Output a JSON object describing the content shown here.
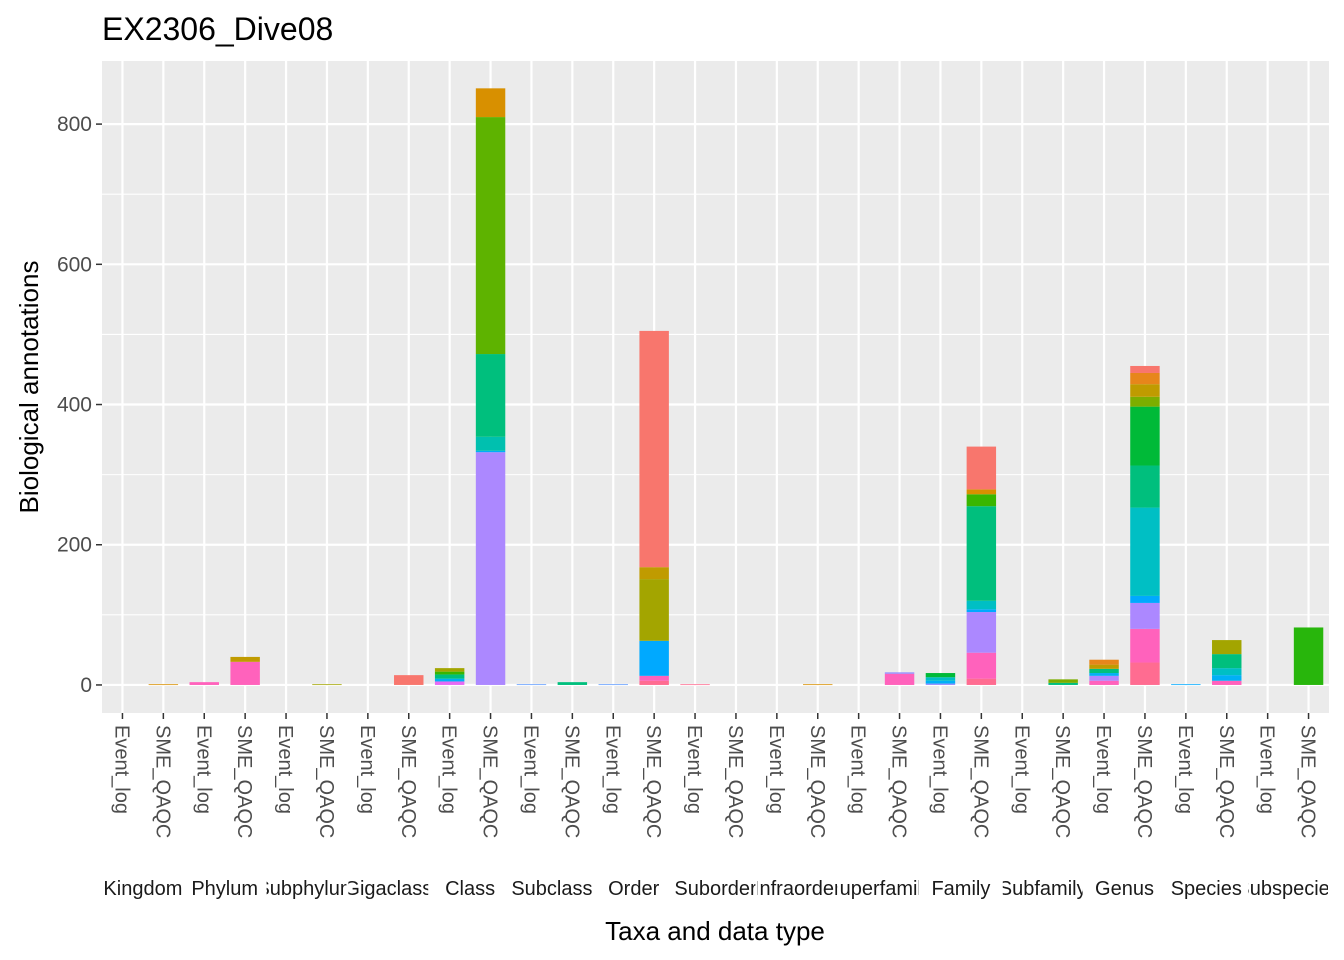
{
  "chart_data": {
    "type": "bar",
    "stacked": true,
    "title": "EX2306_Dive08",
    "xlabel": "Taxa and data type",
    "ylabel": "Biological annotations",
    "ylim": [
      -40,
      890
    ],
    "yticks": [
      0,
      200,
      400,
      600,
      800
    ],
    "grid": true,
    "legend": "none",
    "categories": [
      "Event_log",
      "SME_QAQC",
      "Event_log",
      "SME_QAQC",
      "Event_log",
      "SME_QAQC",
      "Event_log",
      "SME_QAQC",
      "Event_log",
      "SME_QAQC",
      "Event_log",
      "SME_QAQC",
      "Event_log",
      "SME_QAQC",
      "Event_log",
      "SME_QAQC",
      "Event_log",
      "SME_QAQC",
      "Event_log",
      "SME_QAQC",
      "Event_log",
      "SME_QAQC",
      "Event_log",
      "SME_QAQC",
      "Event_log",
      "SME_QAQC",
      "Event_log",
      "SME_QAQC",
      "Event_log",
      "SME_QAQC"
    ],
    "groups": [
      "Kingdom",
      "Phylum",
      "Subphylum",
      "Gigaclass",
      "Class",
      "Subclass",
      "Order",
      "Suborder",
      "Infraorder",
      "Superfamily",
      "Family",
      "Subfamily",
      "Genus",
      "Species",
      "Subspecies"
    ],
    "bars": [
      {
        "segments": []
      },
      {
        "segments": [
          {
            "value": 1,
            "color": "#D89000"
          }
        ]
      },
      {
        "segments": [
          {
            "value": 4,
            "color": "#FF62BC"
          }
        ]
      },
      {
        "segments": [
          {
            "value": 33,
            "color": "#FF62BC"
          },
          {
            "value": 7,
            "color": "#C09B00"
          }
        ]
      },
      {
        "segments": []
      },
      {
        "segments": [
          {
            "value": 1,
            "color": "#A3A500"
          }
        ]
      },
      {
        "segments": []
      },
      {
        "segments": [
          {
            "value": 14,
            "color": "#F8766D"
          }
        ]
      },
      {
        "segments": [
          {
            "value": 5,
            "color": "#E76BF3"
          },
          {
            "value": 4,
            "color": "#00B0F6"
          },
          {
            "value": 6,
            "color": "#00BF7D"
          },
          {
            "value": 4,
            "color": "#39B600"
          },
          {
            "value": 5,
            "color": "#A3A500"
          }
        ]
      },
      {
        "segments": [
          {
            "value": 332,
            "color": "#AC88FF"
          },
          {
            "value": 2,
            "color": "#00B0F6"
          },
          {
            "value": 20,
            "color": "#00C0AF"
          },
          {
            "value": 118,
            "color": "#00BF7D"
          },
          {
            "value": 338,
            "color": "#5EB300"
          },
          {
            "value": 41,
            "color": "#D89000"
          }
        ]
      },
      {
        "segments": [
          {
            "value": 1,
            "color": "#619CFF"
          }
        ]
      },
      {
        "segments": [
          {
            "value": 4,
            "color": "#00BF7D"
          }
        ]
      },
      {
        "segments": [
          {
            "value": 1,
            "color": "#619CFF"
          }
        ]
      },
      {
        "segments": [
          {
            "value": 6,
            "color": "#FF6C91"
          },
          {
            "value": 7,
            "color": "#FF62BC"
          },
          {
            "value": 50,
            "color": "#00A9FF"
          },
          {
            "value": 88,
            "color": "#A3A500"
          },
          {
            "value": 17,
            "color": "#C09B00"
          },
          {
            "value": 337,
            "color": "#F8766D"
          }
        ]
      },
      {
        "segments": [
          {
            "value": 1,
            "color": "#FF6C91"
          }
        ]
      },
      {
        "segments": []
      },
      {
        "segments": []
      },
      {
        "segments": [
          {
            "value": 1,
            "color": "#D89000"
          }
        ]
      },
      {
        "segments": []
      },
      {
        "segments": [
          {
            "value": 16,
            "color": "#FF62BC"
          },
          {
            "value": 2,
            "color": "#9590FF"
          }
        ]
      },
      {
        "segments": [
          {
            "value": 2,
            "color": "#9590FF"
          },
          {
            "value": 4,
            "color": "#00B0F6"
          },
          {
            "value": 5,
            "color": "#00BFC4"
          },
          {
            "value": 6,
            "color": "#00BA38"
          }
        ]
      },
      {
        "segments": [
          {
            "value": 9,
            "color": "#FF6C91"
          },
          {
            "value": 37,
            "color": "#FF62BC"
          },
          {
            "value": 58,
            "color": "#AC88FF"
          },
          {
            "value": 4,
            "color": "#00A9FF"
          },
          {
            "value": 12,
            "color": "#00BFC4"
          },
          {
            "value": 135,
            "color": "#00BF7D"
          },
          {
            "value": 17,
            "color": "#39B600"
          },
          {
            "value": 7,
            "color": "#D89000"
          },
          {
            "value": 61,
            "color": "#F8766D"
          }
        ]
      },
      {
        "segments": []
      },
      {
        "segments": [
          {
            "value": 3,
            "color": "#00BF7D"
          },
          {
            "value": 5,
            "color": "#7CAE00"
          }
        ]
      },
      {
        "segments": [
          {
            "value": 6,
            "color": "#FF62BC"
          },
          {
            "value": 7,
            "color": "#AC88FF"
          },
          {
            "value": 4,
            "color": "#00B0F6"
          },
          {
            "value": 6,
            "color": "#00BF7D"
          },
          {
            "value": 6,
            "color": "#C09B00"
          },
          {
            "value": 7,
            "color": "#E7861B"
          }
        ]
      },
      {
        "segments": [
          {
            "value": 32,
            "color": "#FF6C91"
          },
          {
            "value": 48,
            "color": "#FF62BC"
          },
          {
            "value": 37,
            "color": "#AC88FF"
          },
          {
            "value": 10,
            "color": "#00A9FF"
          },
          {
            "value": 126,
            "color": "#00BFC4"
          },
          {
            "value": 60,
            "color": "#00BF7D"
          },
          {
            "value": 84,
            "color": "#00BA38"
          },
          {
            "value": 14,
            "color": "#7CAE00"
          },
          {
            "value": 18,
            "color": "#C09B00"
          },
          {
            "value": 16,
            "color": "#E7861B"
          },
          {
            "value": 10,
            "color": "#F8766D"
          }
        ]
      },
      {
        "segments": [
          {
            "value": 1,
            "color": "#00A9FF"
          }
        ]
      },
      {
        "segments": [
          {
            "value": 6,
            "color": "#FF62BC"
          },
          {
            "value": 8,
            "color": "#00B0F6"
          },
          {
            "value": 10,
            "color": "#00BFC4"
          },
          {
            "value": 20,
            "color": "#00BF7D"
          },
          {
            "value": 20,
            "color": "#A3A500"
          }
        ]
      },
      {
        "segments": []
      },
      {
        "segments": [
          {
            "value": 82,
            "color": "#28B60C"
          }
        ]
      }
    ]
  }
}
